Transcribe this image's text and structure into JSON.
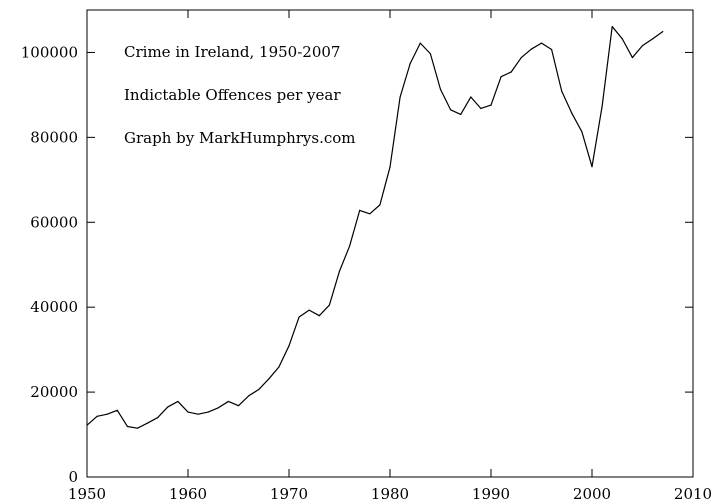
{
  "chart_data": {
    "type": "line",
    "annotations": [
      "Crime in Ireland, 1950-2007",
      "Indictable Offences per year",
      "Graph by MarkHumphrys.com"
    ],
    "xlabel": "",
    "ylabel": "",
    "xlim": [
      1950,
      2010
    ],
    "ylim": [
      0,
      110000
    ],
    "x_ticks": [
      "1950",
      "1960",
      "1970",
      "1980",
      "1990",
      "2000",
      "2010"
    ],
    "y_ticks": [
      "0",
      "20000",
      "40000",
      "60000",
      "80000",
      "100000"
    ],
    "grid": false,
    "legend": "none",
    "series": [
      {
        "x": [
          1950,
          1951,
          1952,
          1953,
          1954,
          1955,
          1956,
          1957,
          1958,
          1959,
          1960,
          1961,
          1962,
          1963,
          1964,
          1965,
          1966,
          1967,
          1968,
          1969,
          1970,
          1971,
          1972,
          1973,
          1974,
          1975,
          1976,
          1977,
          1978,
          1979,
          1980,
          1981,
          1982,
          1983,
          1984,
          1985,
          1986,
          1987,
          1988,
          1989,
          1990,
          1991,
          1992,
          1993,
          1994,
          1995,
          1996,
          1997,
          1998,
          1999,
          2000,
          2001,
          2002,
          2003,
          2004,
          2005,
          2006,
          2007
        ],
        "values": [
          12200,
          14300,
          14800,
          15700,
          11900,
          11500,
          12700,
          14000,
          16500,
          17800,
          15300,
          14800,
          15300,
          16300,
          17800,
          16800,
          19100,
          20600,
          23100,
          25900,
          30900,
          37700,
          39300,
          38000,
          40500,
          48500,
          54400,
          62800,
          62000,
          64100,
          73000,
          89500,
          97400,
          102200,
          99700,
          91300,
          86500,
          85400,
          89500,
          86800,
          87600,
          94300,
          95400,
          98800,
          100800,
          102200,
          100700,
          90900,
          85700,
          81300,
          73100,
          87300,
          106100,
          103200,
          98800,
          101600,
          103200,
          104900
        ]
      }
    ],
    "colors": {
      "line": "#000000",
      "frame": "#000000",
      "background": "#ffffff"
    }
  }
}
